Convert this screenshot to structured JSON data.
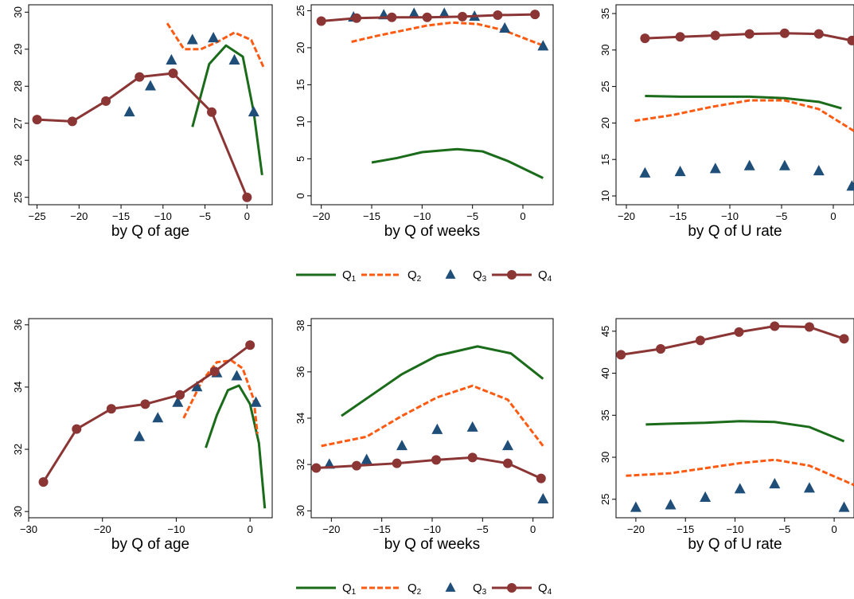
{
  "colors": {
    "Q1": "#1a6b1a",
    "Q2": "#ff5a12",
    "Q3": "#1f4e79",
    "Q4": "#8b3535"
  },
  "legends": [
    {
      "entries": [
        {
          "key": "Q1",
          "label": "Q",
          "sub": "1"
        },
        {
          "key": "Q2",
          "label": "Q",
          "sub": "2"
        },
        {
          "key": "Q3",
          "label": "Q",
          "sub": "3"
        },
        {
          "key": "Q4",
          "label": "Q",
          "sub": "4"
        }
      ]
    },
    {
      "entries": [
        {
          "key": "Q1",
          "label": "Q",
          "sub": "1"
        },
        {
          "key": "Q2",
          "label": "Q",
          "sub": "2"
        },
        {
          "key": "Q3",
          "label": "Q",
          "sub": "3"
        },
        {
          "key": "Q4",
          "label": "Q",
          "sub": "4"
        }
      ]
    }
  ],
  "chart_data": [
    {
      "type": "line",
      "xlabel": "by Q of age",
      "ylabel": "",
      "xlim": [
        -26,
        3
      ],
      "ylim": [
        24.8,
        30.2
      ],
      "xticks": [
        -25,
        -20,
        -15,
        -10,
        -5,
        0
      ],
      "yticks": [
        25,
        26,
        27,
        28,
        29,
        30
      ],
      "series": [
        {
          "name": "Q1",
          "style": "solid",
          "x": [
            -6.5,
            -4.5,
            -2.5,
            -0.5,
            0.8,
            1.8
          ],
          "y": [
            26.9,
            28.6,
            29.1,
            28.8,
            27.3,
            25.6
          ]
        },
        {
          "name": "Q2",
          "style": "dash",
          "x": [
            -9.5,
            -7.5,
            -5.5,
            -3.5,
            -1.5,
            0.5,
            2.0
          ],
          "y": [
            29.7,
            29.0,
            29.0,
            29.2,
            29.45,
            29.25,
            28.5
          ]
        },
        {
          "name": "Q3",
          "style": "marker",
          "x": [
            -14.0,
            -11.5,
            -9.0,
            -6.5,
            -4.0,
            -1.5,
            0.8
          ],
          "y": [
            27.3,
            28.0,
            28.7,
            29.25,
            29.3,
            28.7,
            27.3
          ]
        },
        {
          "name": "Q4",
          "style": "solid-marker",
          "x": [
            -25.0,
            -20.8,
            -16.8,
            -12.8,
            -8.8,
            -4.2,
            0.0
          ],
          "y": [
            27.1,
            27.05,
            27.6,
            28.25,
            28.35,
            27.3,
            25.0
          ]
        }
      ]
    },
    {
      "type": "line",
      "xlabel": "by Q of weeks",
      "ylabel": "",
      "xlim": [
        -21,
        3
      ],
      "ylim": [
        -1.2,
        25.8
      ],
      "xticks": [
        -20,
        -15,
        -10,
        -5,
        0
      ],
      "yticks": [
        0,
        5,
        10,
        15,
        20,
        25
      ],
      "series": [
        {
          "name": "Q1",
          "style": "solid",
          "x": [
            -15,
            -12.5,
            -10,
            -7.5,
            -6.5,
            -4,
            -1.5,
            2
          ],
          "y": [
            4.5,
            5.1,
            5.9,
            6.2,
            6.3,
            6.0,
            4.7,
            2.4
          ]
        },
        {
          "name": "Q2",
          "style": "dash",
          "x": [
            -17,
            -14.5,
            -12,
            -9.5,
            -7,
            -4.5,
            -2,
            2
          ],
          "y": [
            20.8,
            21.6,
            22.3,
            23.0,
            23.4,
            23.2,
            22.4,
            20.3
          ]
        },
        {
          "name": "Q3",
          "style": "marker",
          "x": [
            -16.8,
            -13.8,
            -10.8,
            -7.8,
            -4.8,
            -1.8,
            2.0
          ],
          "y": [
            24.1,
            24.4,
            24.6,
            24.6,
            24.2,
            22.6,
            20.2
          ]
        },
        {
          "name": "Q4",
          "style": "solid-marker",
          "x": [
            -20,
            -16.5,
            -13,
            -9.5,
            -6,
            -2.5,
            1.2
          ],
          "y": [
            23.6,
            24.0,
            24.1,
            24.1,
            24.2,
            24.4,
            24.5
          ]
        }
      ]
    },
    {
      "type": "line",
      "xlabel": "by Q of U rate",
      "ylabel": "",
      "xlim": [
        -21,
        2
      ],
      "ylim": [
        8.8,
        36.2
      ],
      "xticks": [
        -20,
        -15,
        -10,
        -5,
        0
      ],
      "yticks": [
        10,
        15,
        20,
        25,
        30,
        35
      ],
      "series": [
        {
          "name": "Q1",
          "style": "solid",
          "x": [
            -18.2,
            -14.8,
            -11.4,
            -8.1,
            -4.7,
            -1.4,
            0.8
          ],
          "y": [
            23.7,
            23.6,
            23.6,
            23.6,
            23.4,
            22.9,
            22.0
          ]
        },
        {
          "name": "Q2",
          "style": "dash",
          "x": [
            -19.2,
            -15.5,
            -11.8,
            -8.1,
            -4.7,
            -1.4,
            2.0
          ],
          "y": [
            20.3,
            21.1,
            22.2,
            23.1,
            23.1,
            21.9,
            18.9
          ]
        },
        {
          "name": "Q3",
          "style": "marker",
          "x": [
            -18.2,
            -14.8,
            -11.4,
            -8.1,
            -4.7,
            -1.4,
            1.8
          ],
          "y": [
            13.1,
            13.3,
            13.7,
            14.1,
            14.1,
            13.4,
            11.3
          ]
        },
        {
          "name": "Q4",
          "style": "solid-marker",
          "x": [
            -18.2,
            -14.8,
            -11.4,
            -8.1,
            -4.7,
            -1.4,
            1.8
          ],
          "y": [
            31.6,
            31.8,
            32.0,
            32.2,
            32.3,
            32.2,
            31.3
          ]
        }
      ]
    },
    {
      "type": "line",
      "xlabel": "by Q of age",
      "ylabel": "",
      "xlim": [
        -30,
        3
      ],
      "ylim": [
        29.8,
        36.2
      ],
      "xticks": [
        -30,
        -20,
        -10,
        0
      ],
      "yticks": [
        30,
        32,
        34,
        36
      ],
      "series": [
        {
          "name": "Q1",
          "style": "solid",
          "x": [
            -6,
            -4.5,
            -3,
            -1.5,
            0,
            1.2,
            2
          ],
          "y": [
            32.05,
            33.1,
            33.9,
            34.05,
            33.45,
            32.2,
            30.1
          ]
        },
        {
          "name": "Q2",
          "style": "dash",
          "x": [
            -9,
            -6.5,
            -4.5,
            -2.5,
            -1,
            0.5,
            1
          ],
          "y": [
            33.0,
            34.2,
            34.8,
            34.85,
            34.6,
            33.6,
            32.5
          ]
        },
        {
          "name": "Q3",
          "style": "marker",
          "x": [
            -15,
            -12.5,
            -9.8,
            -7.2,
            -4.5,
            -1.8,
            0.8
          ],
          "y": [
            32.4,
            33.0,
            33.5,
            34.0,
            34.45,
            34.35,
            33.5
          ]
        },
        {
          "name": "Q4",
          "style": "solid-marker",
          "x": [
            -28,
            -23.5,
            -18.8,
            -14.2,
            -9.5,
            -4.8,
            0
          ],
          "y": [
            30.95,
            32.65,
            33.3,
            33.45,
            33.75,
            34.5,
            35.35
          ]
        }
      ]
    },
    {
      "type": "line",
      "xlabel": "by Q of weeks",
      "ylabel": "",
      "xlim": [
        -22,
        2
      ],
      "ylim": [
        29.7,
        38.3
      ],
      "xticks": [
        -20,
        -15,
        -10,
        -5,
        0
      ],
      "yticks": [
        30,
        32,
        34,
        36,
        38
      ],
      "series": [
        {
          "name": "Q1",
          "style": "solid",
          "x": [
            -19,
            -16,
            -13,
            -9.5,
            -5.5,
            -2.2,
            1
          ],
          "y": [
            34.1,
            35.0,
            35.9,
            36.7,
            37.1,
            36.8,
            35.7
          ]
        },
        {
          "name": "Q2",
          "style": "dash",
          "x": [
            -21,
            -16.5,
            -13,
            -9.5,
            -6,
            -2.5,
            1
          ],
          "y": [
            32.8,
            33.2,
            34.1,
            34.9,
            35.4,
            34.8,
            32.8
          ]
        },
        {
          "name": "Q3",
          "style": "marker",
          "x": [
            -20.2,
            -16.5,
            -13,
            -9.5,
            -6,
            -2.5,
            1
          ],
          "y": [
            32.0,
            32.2,
            32.8,
            33.5,
            33.6,
            32.8,
            30.5
          ]
        },
        {
          "name": "Q4",
          "style": "solid-marker",
          "x": [
            -21.5,
            -17.5,
            -13.5,
            -9.6,
            -6,
            -2.5,
            0.8
          ],
          "y": [
            31.85,
            31.95,
            32.05,
            32.2,
            32.3,
            32.05,
            31.4
          ]
        }
      ]
    },
    {
      "type": "line",
      "xlabel": "by Q of U rate",
      "ylabel": "",
      "xlim": [
        -22,
        2
      ],
      "ylim": [
        22.8,
        46.5
      ],
      "xticks": [
        -20,
        -15,
        -10,
        -5,
        0
      ],
      "yticks": [
        25,
        30,
        35,
        40,
        45
      ],
      "series": [
        {
          "name": "Q1",
          "style": "solid",
          "x": [
            -19,
            -16.5,
            -13,
            -9.5,
            -6,
            -2.5,
            1
          ],
          "y": [
            33.9,
            34.0,
            34.1,
            34.3,
            34.2,
            33.6,
            31.9
          ]
        },
        {
          "name": "Q2",
          "style": "dash",
          "x": [
            -21,
            -16.5,
            -13,
            -9.5,
            -6,
            -2.5,
            2
          ],
          "y": [
            27.8,
            28.1,
            28.7,
            29.3,
            29.7,
            29.0,
            26.7
          ]
        },
        {
          "name": "Q3",
          "style": "marker",
          "x": [
            -20,
            -16.5,
            -13,
            -9.5,
            -6,
            -2.5,
            1
          ],
          "y": [
            24.0,
            24.3,
            25.2,
            26.2,
            26.8,
            26.3,
            24.0
          ]
        },
        {
          "name": "Q4",
          "style": "solid-marker",
          "x": [
            -21.5,
            -17.5,
            -13.5,
            -9.6,
            -6,
            -2.5,
            1
          ],
          "y": [
            42.2,
            42.9,
            43.9,
            44.9,
            45.6,
            45.5,
            44.1
          ]
        }
      ]
    }
  ]
}
